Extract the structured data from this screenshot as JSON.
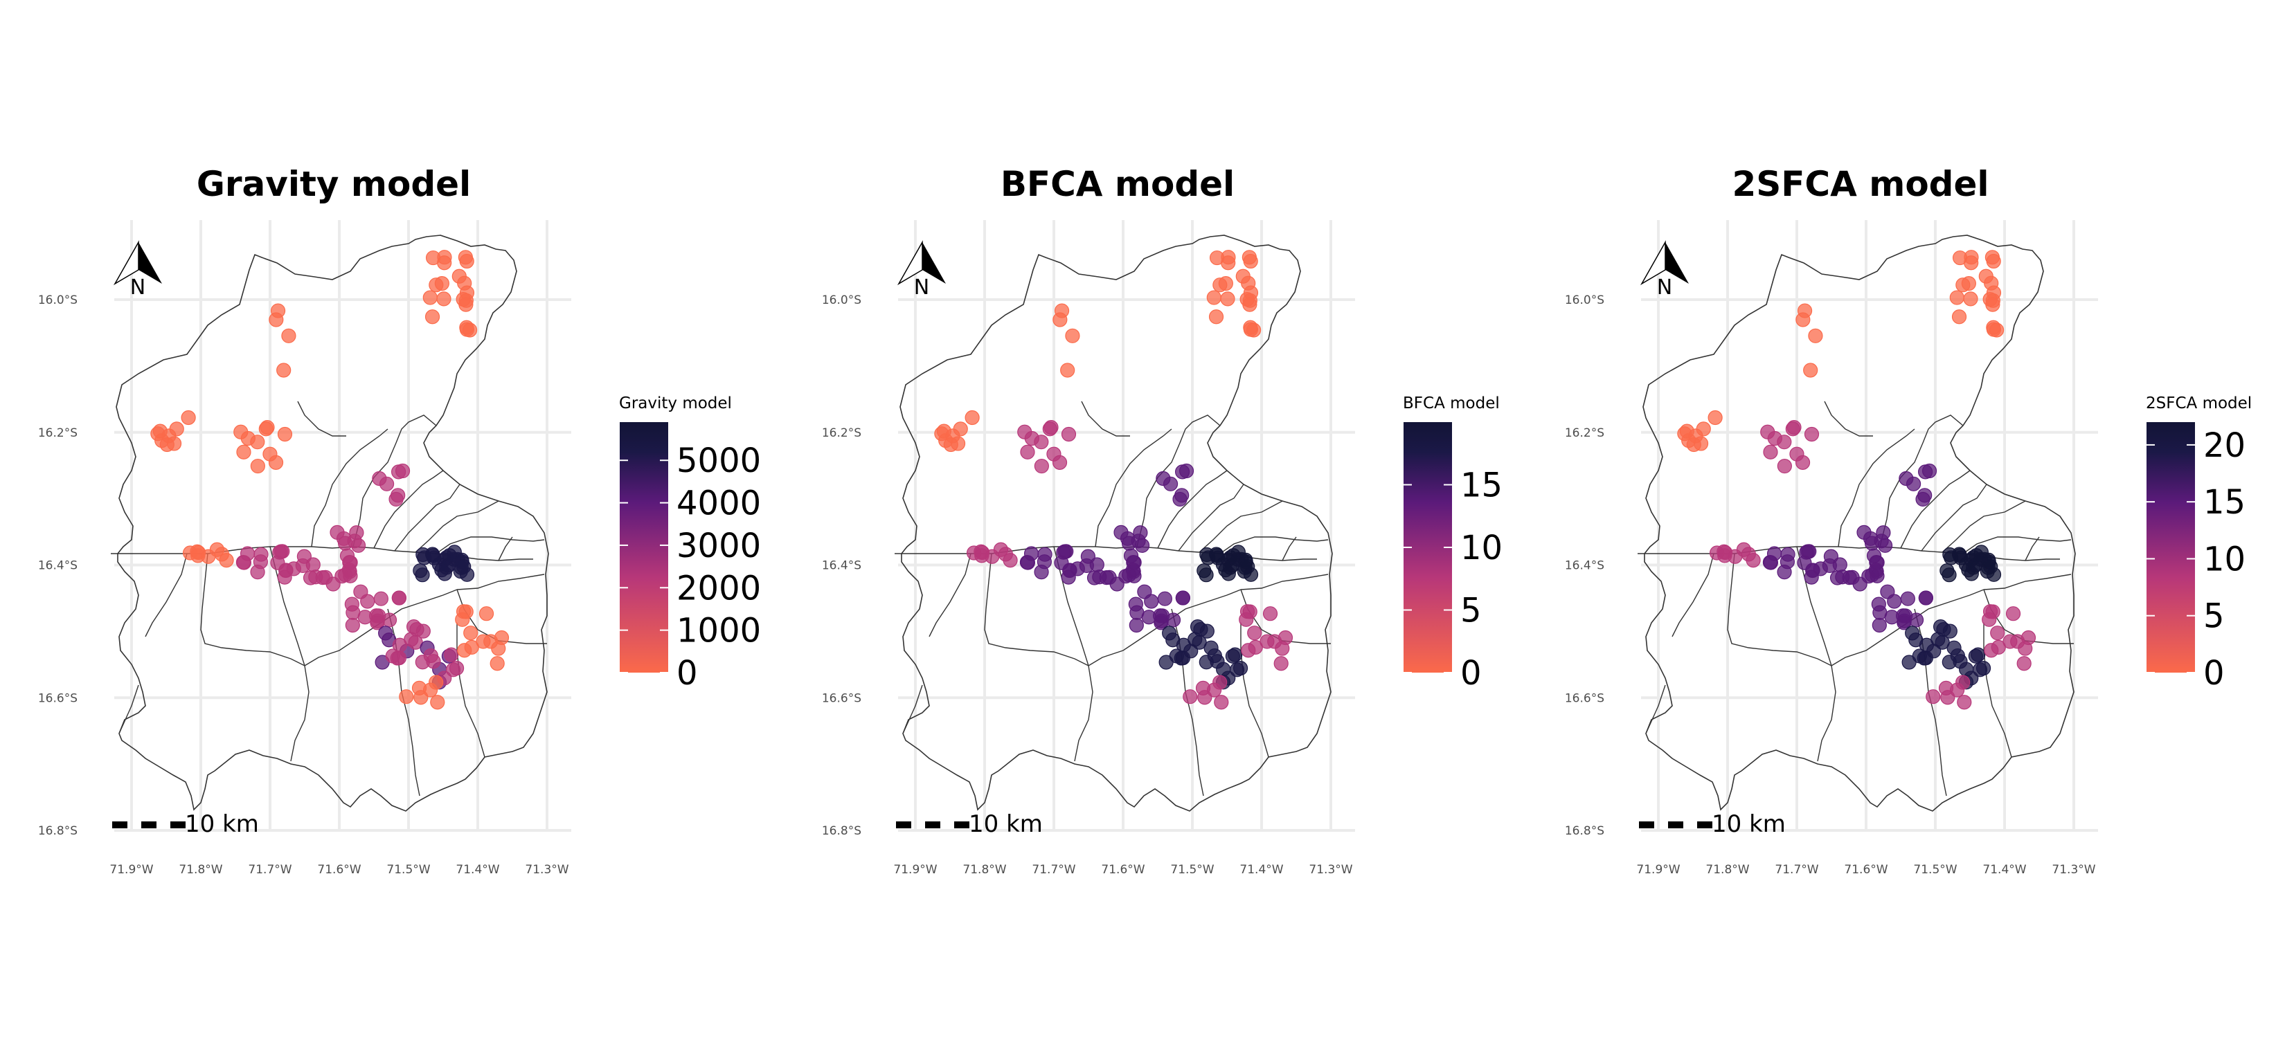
{
  "panels": [
    {
      "title": "Gravity model",
      "legend": {
        "title": "Gravity model",
        "min": 0,
        "max": 5900,
        "ticks": [
          0,
          1000,
          2000,
          3000,
          4000,
          5000
        ]
      }
    },
    {
      "title": "BFCA model",
      "legend": {
        "title": "BFCA model",
        "min": 0,
        "max": 20,
        "ticks": [
          0,
          5,
          10,
          15
        ]
      }
    },
    {
      "title": "2SFCA model",
      "legend": {
        "title": "2SFCA model",
        "min": 0,
        "max": 22,
        "ticks": [
          0,
          5,
          10,
          15,
          20
        ]
      }
    }
  ],
  "axes": {
    "x_ticks": [
      -71.9,
      -71.8,
      -71.7,
      -71.6,
      -71.5,
      -71.4,
      -71.3
    ],
    "x_tick_labels": [
      "71.9°W",
      "71.8°W",
      "71.7°W",
      "71.6°W",
      "71.5°W",
      "71.4°W",
      "71.3°W"
    ],
    "y_ticks": [
      -16.0,
      -16.2,
      -16.4,
      -16.6,
      -16.8
    ],
    "y_tick_labels": [
      "16.0°S",
      "16.2°S",
      "16.4°S",
      "16.6°S",
      "16.8°S"
    ],
    "xlim": [
      -71.945,
      -71.265
    ],
    "ylim": [
      -16.8,
      -15.88
    ],
    "grid": true
  },
  "north_arrow": {
    "label": "N"
  },
  "scale_bar": {
    "label": "10 km"
  },
  "colors": {
    "low": "#fb6a4a",
    "mid": "#b73779",
    "midhigh": "#5b1a7a",
    "high": "#1b1847",
    "top": "#121436",
    "grid": "#ebebeb",
    "boundary": "#333333"
  }
}
